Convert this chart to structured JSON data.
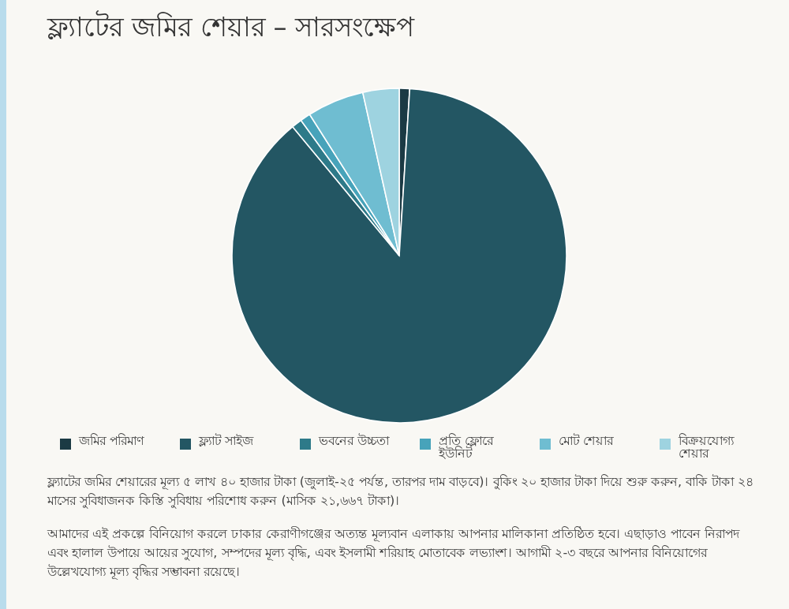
{
  "chart_data": {
    "type": "pie",
    "title": "ফ্ল্যাটের জমির শেয়ার – সারসংক্ষেপ",
    "categories": [
      "জমির পরিমাণ",
      "ফ্ল্যাট সাইজ",
      "ভবনের উচ্চতা",
      "প্রতি ফ্লোরে ইউনিট",
      "মোট শেয়ার",
      "বিক্রয়যোগ্য শেয়ার"
    ],
    "values": [
      1,
      88,
      1,
      1,
      5.5,
      3.5
    ],
    "colors": [
      "#1b3a44",
      "#235663",
      "#2e7a89",
      "#47a3ba",
      "#6fbdd1",
      "#9ed3e0"
    ],
    "legend": "bottom",
    "annotations": [
      "ফ্ল্যাটের জমির শেয়ারের মূল্য ৫ লাখ ৪০ হাজার টাকা (জুলাই-২৫ পর্যন্ত, তারপর দাম বাড়বে)।  বুকিং ২০ হাজার টাকা দিয়ে শুরু করুন, বাকি টাকা ২৪ মাসের সুবিধাজনক কিস্তি সুবিধায় পরিশোধ করুন (মাসিক ২১,৬৬৭ টাকা)।",
      "আমাদের এই প্রকল্পে বিনিয়োগ করলে ঢাকার কেরাণীগঞ্জের অত্যন্ত মূল্যবান এলাকায় আপনার মালিকানা প্রতিষ্ঠিত হবে। এছাড়াও পাবেন নিরাপদ এবং হালাল উপায়ে আয়ের সুযোগ, সম্পদের মূল্য বৃদ্ধি, এবং ইসলামী শরিয়াহ মোতাবেক লভ্যাংশ। আগামী ২-৩ বছরে আপনার বিনিয়োগের উল্লেখযোগ্য মূল্য বৃদ্ধির সম্ভাবনা রয়েছে।"
    ]
  }
}
